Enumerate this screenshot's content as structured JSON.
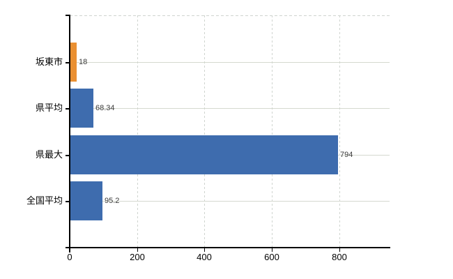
{
  "chart_data": {
    "type": "bar",
    "orientation": "horizontal",
    "title": "",
    "xlabel": "",
    "ylabel": "",
    "categories": [
      "坂東市",
      "県平均",
      "県最大",
      "全国平均"
    ],
    "values": [
      18,
      68.34,
      794,
      95.2
    ],
    "value_labels": [
      "18",
      "68.34",
      "794",
      "95.2"
    ],
    "bar_colors": [
      "#ea9032",
      "#3e6cae",
      "#3e6cae",
      "#3e6cae"
    ],
    "x_ticks": [
      0,
      200,
      400,
      600,
      800
    ],
    "x_tick_labels": [
      "0",
      "200",
      "400",
      "600",
      "800"
    ],
    "xlim": [
      0,
      950
    ],
    "grid": true,
    "legend": "none",
    "background": "#ffffff"
  },
  "colors": {
    "bar_blue": "#3e6cae",
    "bar_orange": "#ea9032",
    "axis": "#000000",
    "gridline_horizontal": "#d5d9cf",
    "gridline_vertical_dashed": "#cfd4cf",
    "value_label_text": "#3a3a3a",
    "tick_label_text": "#000000"
  }
}
